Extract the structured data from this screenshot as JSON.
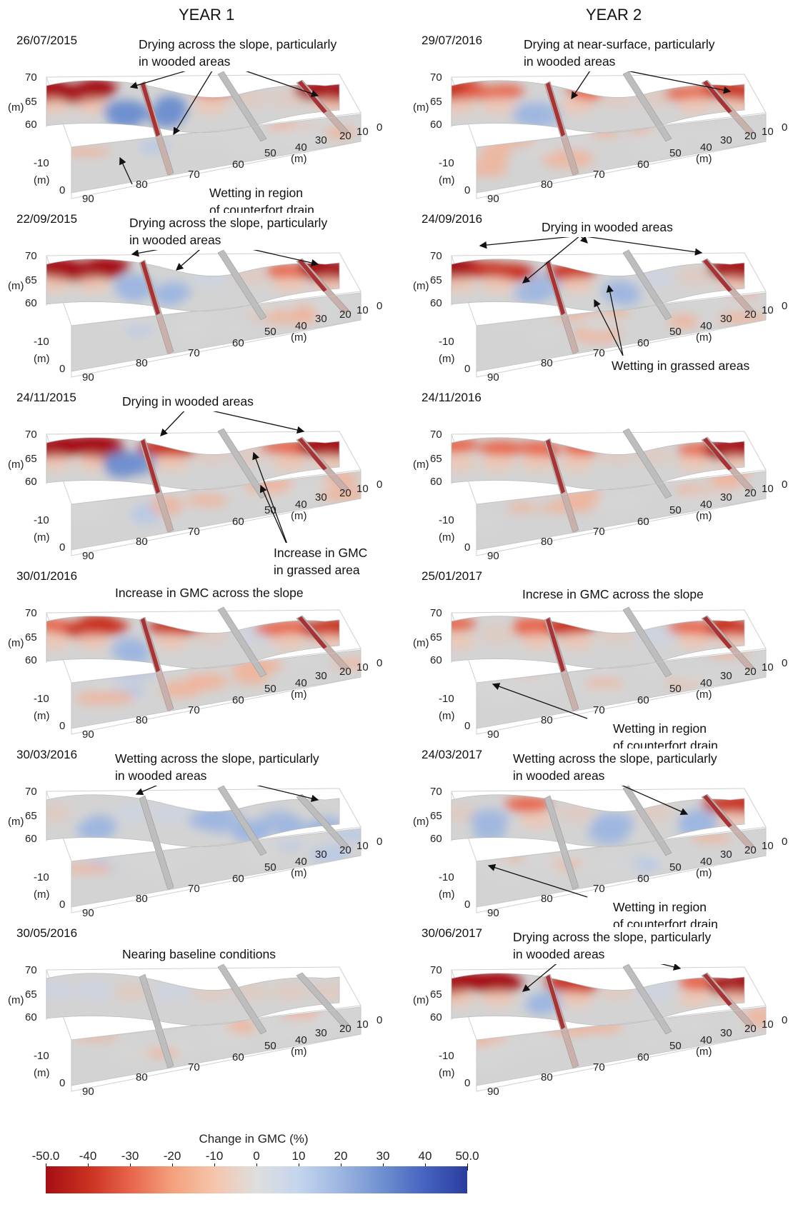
{
  "columns": {
    "year1": "YEAR 1",
    "year2": "YEAR 2"
  },
  "colors": {
    "drying": "#b31919",
    "wetting": "#3f5fc4",
    "neutral": "#cfcfcf",
    "panel_fill": "#d3d3d3"
  },
  "axes": {
    "z_ticks": [
      "70",
      "65",
      "60"
    ],
    "z_unit": "(m)",
    "y_ticks": [
      "-10",
      "0"
    ],
    "y_unit": "(m)",
    "x_ticks": [
      "90",
      "80",
      "70",
      "60",
      "50",
      "40",
      "30",
      "20",
      "10",
      "0"
    ],
    "x_unit": "(m)"
  },
  "panels": [
    {
      "id": "p1",
      "date": "26/07/2015",
      "notes": [
        {
          "lines": [
            "Drying across the slope, particularly",
            "in wooded areas"
          ],
          "style": "top"
        },
        {
          "lines": [
            "Wetting in region",
            "of counterfort drain"
          ],
          "style": "bottom"
        }
      ]
    },
    {
      "id": "p2",
      "date": "29/07/2016",
      "notes": [
        {
          "lines": [
            "Drying at near-surface, particularly",
            "in wooded areas"
          ],
          "style": "top"
        }
      ]
    },
    {
      "id": "p3",
      "date": "22/09/2015",
      "notes": [
        {
          "lines": [
            "Drying across the slope, particularly",
            "in wooded areas"
          ],
          "style": "top"
        }
      ]
    },
    {
      "id": "p4",
      "date": "24/09/2016",
      "notes": [
        {
          "lines": [
            "Drying in wooded areas"
          ],
          "style": "top"
        },
        {
          "lines": [
            "Wetting in grassed areas"
          ],
          "style": "bottom"
        }
      ]
    },
    {
      "id": "p5",
      "date": "24/11/2015",
      "notes": [
        {
          "lines": [
            "Drying in wooded areas"
          ],
          "style": "top"
        },
        {
          "lines": [
            "Increase in GMC",
            "in grassed area"
          ],
          "style": "bottom"
        }
      ]
    },
    {
      "id": "p6",
      "date": "24/11/2016",
      "notes": []
    },
    {
      "id": "p7",
      "date": "30/01/2016",
      "notes": [
        {
          "lines": [
            "Increase in GMC across the slope"
          ],
          "style": "top"
        }
      ]
    },
    {
      "id": "p8",
      "date": "25/01/2017",
      "notes": [
        {
          "lines": [
            "Increse in GMC across the slope"
          ],
          "style": "top"
        },
        {
          "lines": [
            "Wetting in region",
            "of counterfort drain"
          ],
          "style": "bottom"
        }
      ]
    },
    {
      "id": "p9",
      "date": "30/03/2016",
      "notes": [
        {
          "lines": [
            "Wetting across the slope, particularly",
            "in wooded areas"
          ],
          "style": "top"
        }
      ]
    },
    {
      "id": "p10",
      "date": "24/03/2017",
      "notes": [
        {
          "lines": [
            "Wetting across the slope, particularly",
            "in wooded areas"
          ],
          "style": "top"
        },
        {
          "lines": [
            "Wetting in region",
            "of counterfort drain"
          ],
          "style": "bottom"
        }
      ]
    },
    {
      "id": "p11",
      "date": "30/05/2016",
      "notes": [
        {
          "lines": [
            "Nearing baseline conditions"
          ],
          "style": "top"
        }
      ]
    },
    {
      "id": "p12",
      "date": "30/06/2017",
      "notes": [
        {
          "lines": [
            "Drying across the slope, particularly",
            "in wooded areas"
          ],
          "style": "top"
        }
      ]
    }
  ],
  "colorbar": {
    "title": "Change in GMC (%)",
    "ticks": [
      "-50.0",
      "-40",
      "-30",
      "-20",
      "-10",
      "0",
      "10",
      "20",
      "30",
      "40",
      "50.0"
    ],
    "range": [
      -50,
      50
    ]
  }
}
